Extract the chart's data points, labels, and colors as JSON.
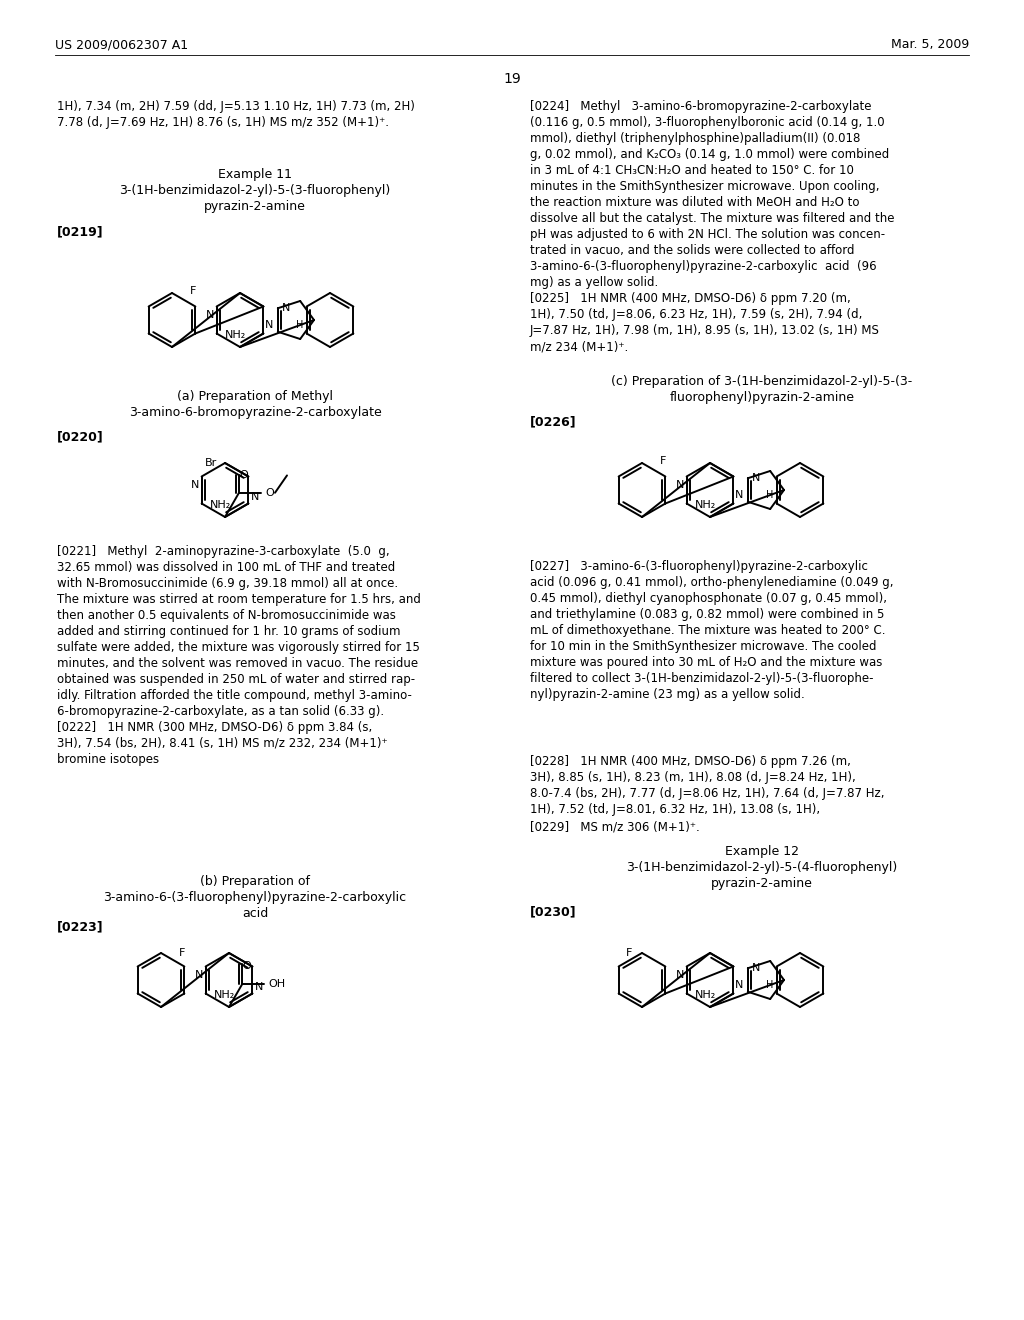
{
  "page_number": "19",
  "patent_number": "US 2009/0062307 A1",
  "patent_date": "Mar. 5, 2009",
  "background_color": "#ffffff",
  "text_color": "#000000",
  "top_text_left": "1H), 7.34 (m, 2H) 7.59 (dd, J=5.13 1.10 Hz, 1H) 7.73 (m, 2H)\n7.78 (d, J=7.69 Hz, 1H) 8.76 (s, 1H) MS m/z 352 (M+1)⁺.",
  "top_text_right_0224": "[0224]   Methyl   3-amino-6-bromopyrazine-2-carboxylate\n(0.116 g, 0.5 mmol), 3-fluorophenylboronic acid (0.14 g, 1.0\nmmol), diethyl (triphenylphosphine)palladium(II) (0.018\ng, 0.02 mmol), and K₂CO₃ (0.14 g, 1.0 mmol) were combined\nin 3 mL of 4:1 CH₃CN:H₂O and heated to 150° C. for 10\nminutes in the SmithSynthesizer microwave. Upon cooling,\nthe reaction mixture was diluted with MeOH and H₂O to\ndissolve all but the catalyst. The mixture was filtered and the\npH was adjusted to 6 with 2N HCl. The solution was concen-\ntrated in vacuo, and the solids were collected to afford\n3-amino-6-(3-fluorophenyl)pyrazine-2-carboxylic  acid  (96\nmg) as a yellow solid.\n[0225]   1H NMR (400 MHz, DMSO-D6) δ ppm 7.20 (m,\n1H), 7.50 (td, J=8.06, 6.23 Hz, 1H), 7.59 (s, 2H), 7.94 (d,\nJ=7.87 Hz, 1H), 7.98 (m, 1H), 8.95 (s, 1H), 13.02 (s, 1H) MS\nm/z 234 (M+1)⁺.",
  "example11_title": "Example 11",
  "example11_subtitle": "3-(1H-benzimidazol-2-yl)-5-(3-fluorophenyl)\npyrazin-2-amine",
  "para0219": "[0219]",
  "para0220": "[0220]",
  "para0221_text": "[0221]   Methyl  2-aminopyrazine-3-carboxylate  (5.0  g,\n32.65 mmol) was dissolved in 100 mL of THF and treated\nwith N-Bromosuccinimide (6.9 g, 39.18 mmol) all at once.\nThe mixture was stirred at room temperature for 1.5 hrs, and\nthen another 0.5 equivalents of N-bromosuccinimide was\nadded and stirring continued for 1 hr. 10 grams of sodium\nsulfate were added, the mixture was vigorously stirred for 15\nminutes, and the solvent was removed in vacuo. The residue\nobtained was suspended in 250 mL of water and stirred rap-\nidly. Filtration afforded the title compound, methyl 3-amino-\n6-bromopyrazine-2-carboxylate, as a tan solid (6.33 g).\n[0222]   1H NMR (300 MHz, DMSO-D6) δ ppm 3.84 (s,\n3H), 7.54 (bs, 2H), 8.41 (s, 1H) MS m/z 232, 234 (M+1)⁺\nbromine isotopes",
  "sub_a_title": "(a) Preparation of Methyl\n3-amino-6-bromopyrazine-2-carboxylate",
  "sub_b_title": "(b) Preparation of\n3-amino-6-(3-fluorophenyl)pyrazine-2-carboxylic\nacid",
  "sub_c_title": "(c) Preparation of 3-(1H-benzimidazol-2-yl)-5-(3-\nfluorophenyl)pyrazin-2-amine",
  "para0223": "[0223]",
  "para0226": "[0226]",
  "para0227_text": "[0227]   3-amino-6-(3-fluorophenyl)pyrazine-2-carboxylic\nacid (0.096 g, 0.41 mmol), ortho-phenylenediamine (0.049 g,\n0.45 mmol), diethyl cyanophosphonate (0.07 g, 0.45 mmol),\nand triethylamine (0.083 g, 0.82 mmol) were combined in 5\nmL of dimethoxyethane. The mixture was heated to 200° C.\nfor 10 min in the SmithSynthesizer microwave. The cooled\nmixture was poured into 30 mL of H₂O and the mixture was\nfiltered to collect 3-(1H-benzimidazol-2-yl)-5-(3-fluorophe-\nnyl)pyrazin-2-amine (23 mg) as a yellow solid.",
  "para0228_text": "[0228]   1H NMR (400 MHz, DMSO-D6) δ ppm 7.26 (m,\n3H), 8.85 (s, 1H), 8.23 (m, 1H), 8.08 (d, J=8.24 Hz, 1H),\n8.0-7.4 (bs, 2H), 7.77 (d, J=8.06 Hz, 1H), 7.64 (d, J=7.87 Hz,\n1H), 7.52 (td, J=8.01, 6.32 Hz, 1H), 13.08 (s, 1H),",
  "para0229_text": "[0229]   MS m/z 306 (M+1)⁺.",
  "example12_title": "Example 12",
  "example12_subtitle": "3-(1H-benzimidazol-2-yl)-5-(4-fluorophenyl)\npyrazin-2-amine",
  "para0230": "[0230]"
}
